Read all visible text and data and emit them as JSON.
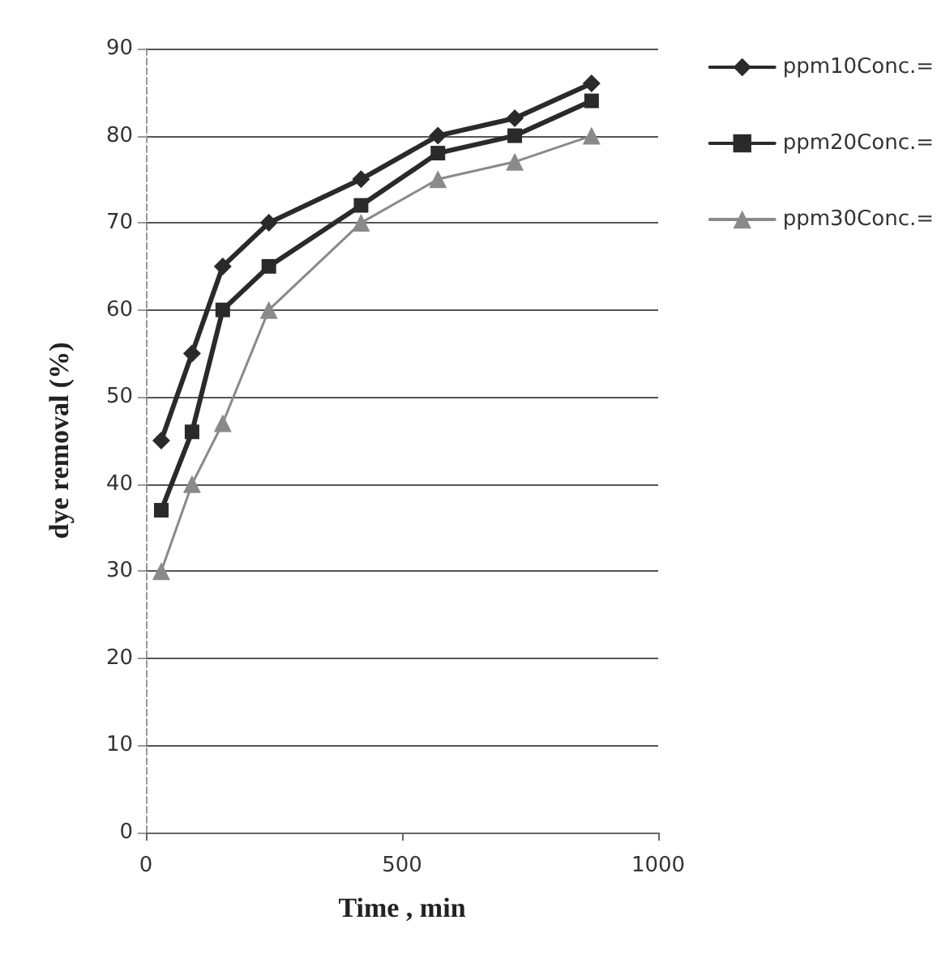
{
  "chart_data": {
    "type": "line",
    "xlabel": "Time , min",
    "ylabel": "dye removal (%)",
    "x": [
      30,
      90,
      150,
      240,
      420,
      570,
      720,
      870
    ],
    "series": [
      {
        "name": "ppm10Conc.=",
        "color": "#2a2a2a",
        "marker": "diamond",
        "values": [
          45,
          55,
          65,
          70,
          75,
          80,
          82,
          86
        ]
      },
      {
        "name": "ppm20Conc.=",
        "color": "#2a2a2a",
        "marker": "square",
        "values": [
          37,
          46,
          60,
          65,
          72,
          78,
          80,
          84
        ]
      },
      {
        "name": "ppm30Conc.=",
        "color": "#8a8a8a",
        "marker": "triangle",
        "values": [
          30,
          40,
          47,
          60,
          70,
          75,
          77,
          80
        ]
      }
    ],
    "xlim": [
      0,
      1000
    ],
    "xticks": [
      0,
      500,
      1000
    ],
    "ylim": [
      0,
      90
    ],
    "yticks": [
      0,
      10,
      20,
      30,
      40,
      50,
      60,
      70,
      80,
      90
    ],
    "grid": "y",
    "legend": "top right",
    "line_style": "solid"
  }
}
